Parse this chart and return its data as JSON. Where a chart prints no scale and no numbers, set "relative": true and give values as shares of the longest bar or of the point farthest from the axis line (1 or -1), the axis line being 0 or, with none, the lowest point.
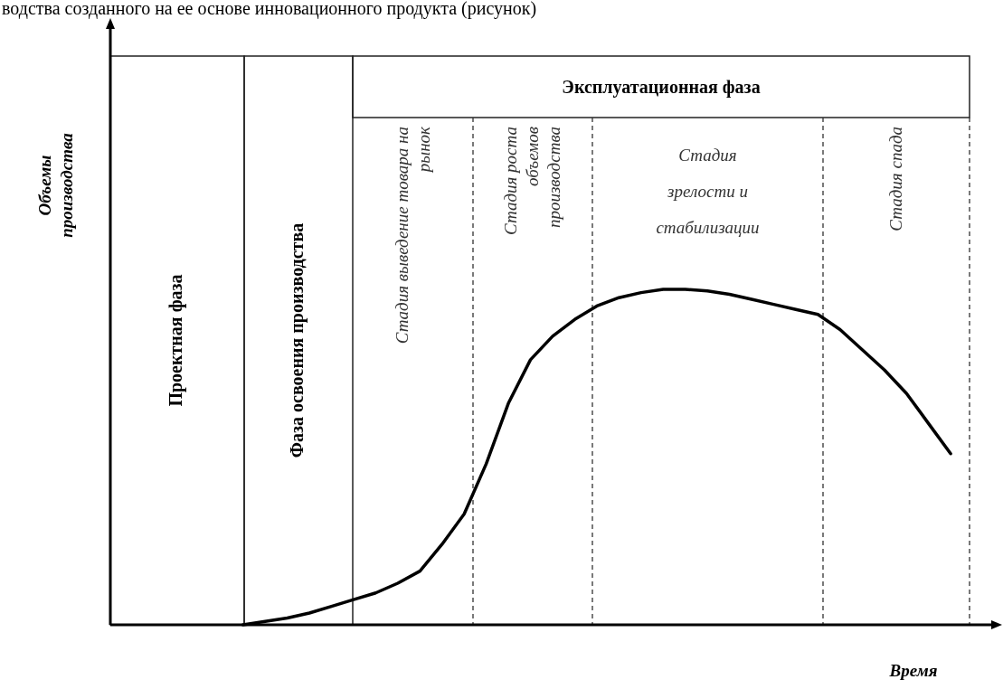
{
  "chart_data": {
    "type": "line",
    "relative": true,
    "tick_labels": false,
    "ylabel": "Объемы\nпроизводства",
    "xlabel": "Время",
    "annotations": [
      "водства созданного на ее основе инновационного продукта (рисунок)",
      "Проектная  фаза",
      "Фаза освоения производства",
      "Эксплуатационная фаза",
      "Стадия выведение  товара на\nрынок",
      "Стадия роста\nобъемов\nпроизводства",
      "Стадия\nзрелости и\nстабилизации",
      "Стадия спада"
    ],
    "categories": [
      null,
      null,
      null,
      null,
      null,
      null,
      null,
      null,
      null,
      null,
      null,
      null,
      null,
      null,
      null,
      null,
      null,
      null,
      null,
      null,
      null,
      null,
      null,
      null,
      null,
      null,
      null,
      null,
      null,
      null,
      null,
      null,
      null,
      null,
      null,
      null,
      null,
      null,
      null,
      null,
      null
    ],
    "series": [
      {
        "color": "#000000",
        "values": [
          null,
          null,
          null,
          null,
          null,
          null,
          0,
          0.01,
          0.02,
          0.035,
          0.055,
          0.075,
          0.095,
          0.124,
          0.16,
          0.24,
          0.33,
          0.48,
          0.66,
          0.79,
          0.86,
          0.91,
          0.95,
          0.975,
          0.99,
          1,
          1,
          0.995,
          0.985,
          0.97,
          0.955,
          0.94,
          0.925,
          0.88,
          0.82,
          0.76,
          0.69,
          0.6,
          0.51,
          null,
          null
        ]
      }
    ]
  }
}
